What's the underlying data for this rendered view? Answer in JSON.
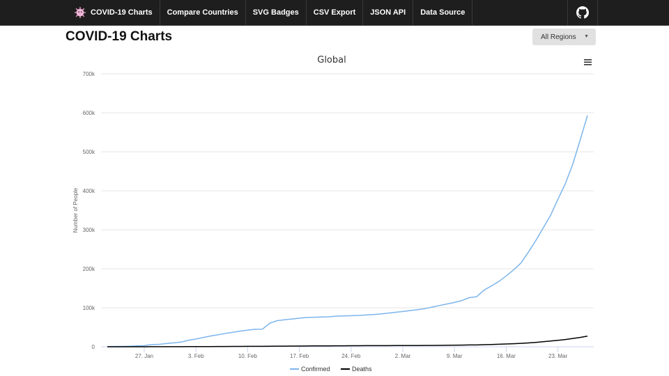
{
  "nav": {
    "brand": "COVID-19 Charts",
    "items": [
      "Compare Countries",
      "SVG Badges",
      "CSV Export",
      "JSON API",
      "Data Source"
    ],
    "github_icon": "github-icon"
  },
  "page_title": "COVID-19 Charts",
  "region_select": {
    "value": "All Regions"
  },
  "colors": {
    "confirmed": "#7cb5ec",
    "deaths": "#000000",
    "nav_bg": "#1e1e1e"
  },
  "chart_data": {
    "type": "line",
    "title": "Global",
    "xlabel": "",
    "ylabel": "Number of People",
    "x_start": "2020-01-22",
    "x_step_days": 1,
    "x_ticks": [
      {
        "day": 5,
        "label": "27. Jan"
      },
      {
        "day": 12,
        "label": "3. Feb"
      },
      {
        "day": 19,
        "label": "10. Feb"
      },
      {
        "day": 26,
        "label": "17. Feb"
      },
      {
        "day": 33,
        "label": "24. Feb"
      },
      {
        "day": 40,
        "label": "2. Mar"
      },
      {
        "day": 47,
        "label": "9. Mar"
      },
      {
        "day": 54,
        "label": "16. Mar"
      },
      {
        "day": 61,
        "label": "23. Mar"
      }
    ],
    "y_ticks": [
      {
        "v": 0,
        "label": "0"
      },
      {
        "v": 100000,
        "label": "100k"
      },
      {
        "v": 200000,
        "label": "200k"
      },
      {
        "v": 300000,
        "label": "300k"
      },
      {
        "v": 400000,
        "label": "400k"
      },
      {
        "v": 500000,
        "label": "500k"
      },
      {
        "v": 600000,
        "label": "600k"
      },
      {
        "v": 700000,
        "label": "700k"
      }
    ],
    "ylim": [
      0,
      700000
    ],
    "grid": true,
    "legend_position": "bottom-center",
    "series": [
      {
        "name": "Confirmed",
        "color": "#7cb5ec",
        "values": [
          555,
          654,
          941,
          1434,
          2118,
          2927,
          5578,
          6166,
          8234,
          9927,
          12038,
          16787,
          19881,
          23892,
          27635,
          30794,
          34391,
          37120,
          40150,
          42762,
          44802,
          45221,
          60368,
          66885,
          69030,
          71224,
          73258,
          75136,
          75639,
          76197,
          76823,
          78579,
          78965,
          79568,
          80413,
          81395,
          82754,
          84120,
          86011,
          88369,
          90306,
          92840,
          95120,
          97886,
          101801,
          105847,
          109821,
          113590,
          118620,
          125875,
          128352,
          145205,
          156101,
          167454,
          181574,
          197102,
          214821,
          242570,
          272208,
          304507,
          336953,
          378235,
          418045,
          467653,
          529591,
          593291
        ]
      },
      {
        "name": "Deaths",
        "color": "#000000",
        "values": [
          17,
          18,
          26,
          42,
          56,
          82,
          131,
          133,
          171,
          213,
          259,
          362,
          426,
          492,
          564,
          634,
          719,
          806,
          906,
          1013,
          1113,
          1118,
          1371,
          1523,
          1666,
          1770,
          1868,
          2007,
          2122,
          2247,
          2251,
          2458,
          2469,
          2629,
          2708,
          2770,
          2814,
          2872,
          2941,
          2996,
          3085,
          3160,
          3254,
          3348,
          3460,
          3558,
          3803,
          3996,
          4262,
          4615,
          4720,
          5404,
          5819,
          6440,
          7126,
          7905,
          8733,
          9867,
          11299,
          12973,
          14651,
          16505,
          18625,
          21181,
          23970,
          27198
        ]
      }
    ]
  }
}
